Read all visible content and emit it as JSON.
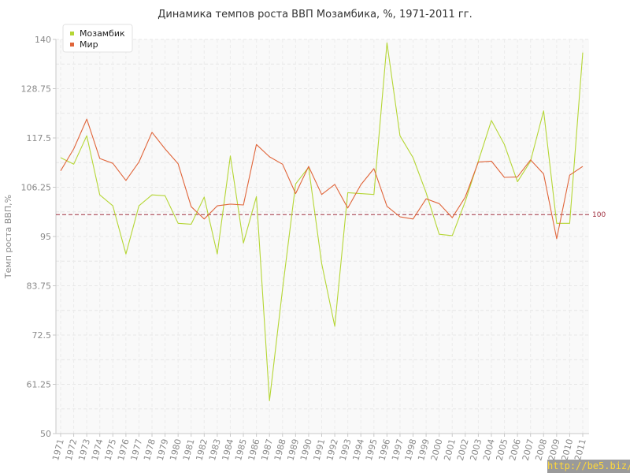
{
  "chart_data": {
    "type": "line",
    "title": "Динамика темпов роста ВВП Мозамбика, %, 1971-2011 гг.",
    "xlabel": "",
    "ylabel": "Темп роста ВВП,%",
    "ylim": [
      50,
      140
    ],
    "yticks": [
      "50",
      "61.25",
      "72.5",
      "83.75",
      "95",
      "106.25",
      "117.5",
      "128.75",
      "140"
    ],
    "x": [
      "1971",
      "1972",
      "1973",
      "1974",
      "1975",
      "1976",
      "1977",
      "1978",
      "1979",
      "1980",
      "1981",
      "1982",
      "1983",
      "1984",
      "1985",
      "1986",
      "1987",
      "1988",
      "1989",
      "1990",
      "1991",
      "1992",
      "1993",
      "1994",
      "1995",
      "1996",
      "1997",
      "1998",
      "1999",
      "2000",
      "2001",
      "2002",
      "2003",
      "2004",
      "2005",
      "2006",
      "2007",
      "2008",
      "2009",
      "2010",
      "2011"
    ],
    "series": [
      {
        "name": "Мозамбик",
        "color": "#b5d635",
        "values": [
          113.0,
          111.5,
          118.0,
          104.5,
          102.0,
          91.0,
          102.0,
          104.5,
          104.3,
          98.0,
          97.8,
          104.0,
          91.0,
          113.4,
          93.5,
          104.1,
          57.5,
          83.0,
          107.0,
          110.8,
          88.8,
          74.5,
          105.0,
          104.8,
          104.6,
          139.2,
          118.0,
          113.0,
          105.0,
          95.5,
          95.2,
          103.0,
          112.2,
          121.5,
          116.0,
          107.5,
          112.2,
          123.7,
          98.0,
          98.0,
          137.0
        ]
      },
      {
        "name": "Мир",
        "color": "#e0653a",
        "values": [
          110.0,
          115.0,
          121.8,
          112.8,
          111.7,
          107.8,
          112.0,
          118.8,
          115.0,
          111.6,
          101.8,
          99.0,
          102.0,
          102.4,
          102.2,
          116.0,
          113.2,
          111.5,
          104.8,
          111.0,
          104.6,
          106.9,
          101.5,
          106.8,
          110.5,
          101.9,
          99.5,
          99.0,
          103.6,
          102.5,
          99.3,
          104.0,
          112.0,
          112.2,
          108.5,
          108.6,
          112.5,
          109.3,
          94.5,
          109.0,
          111.0
        ]
      }
    ],
    "reference_line": {
      "value": 100,
      "label": "100",
      "color": "#a03040"
    },
    "grid": true,
    "legend_position": "top-left"
  },
  "watermark": "http://be5.biz/"
}
